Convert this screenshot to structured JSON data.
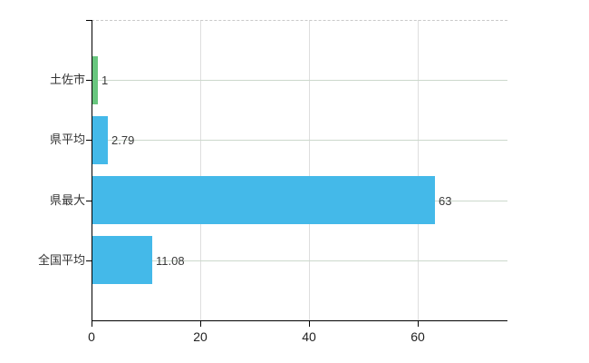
{
  "chart_data": {
    "type": "bar",
    "orientation": "horizontal",
    "title": "",
    "categories": [
      "土佐市",
      "県平均",
      "県最大",
      "全国平均"
    ],
    "values": [
      1,
      2.79,
      63,
      11.08
    ],
    "value_labels": [
      "1",
      "2.79",
      "63",
      "11.08"
    ],
    "bar_colors": [
      "#68c67e",
      "#44b9e9",
      "#44b9e9",
      "#44b9e9"
    ],
    "x_tick_values": [
      0,
      20,
      40,
      60
    ],
    "x_tick_labels": [
      "0",
      "20",
      "40",
      "60"
    ],
    "xlim": [
      0,
      76.5
    ],
    "xlabel": "",
    "ylabel": "",
    "legend": "none",
    "grid": {
      "vertical_lines": true,
      "horizontal_lines": true,
      "top_border_dashed": true
    },
    "colors": {
      "bar_blue": "#44b9e9",
      "bar_green": "#68c67e",
      "axis": "#000000",
      "grid_vertical": "#dedede",
      "grid_horizontal": "#ccd8cc",
      "top_border_dash": "#c9c9c9",
      "text": "#333333",
      "background": "#ffffff"
    }
  }
}
